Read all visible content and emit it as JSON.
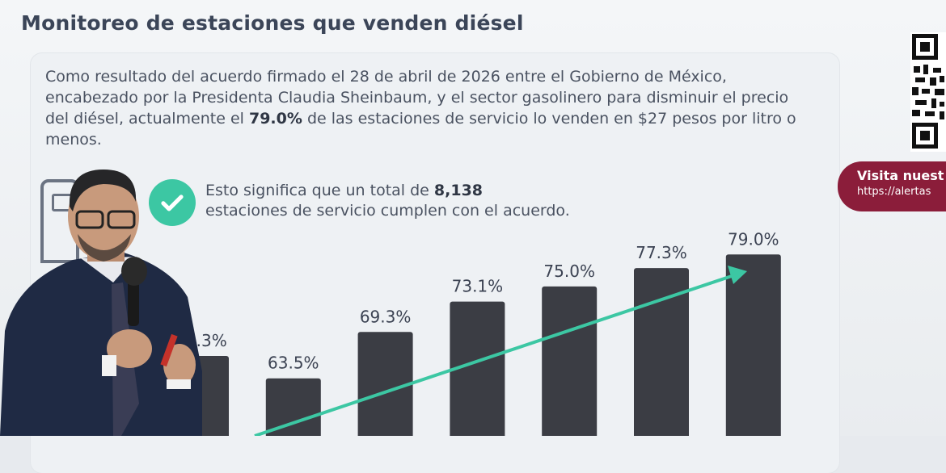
{
  "title": "Monitoreo de estaciones que venden diésel",
  "intro": {
    "text_before": "Como resultado del acuerdo firmado el 28 de abril de 2026 entre el Gobierno de México, encabezado por la Presidenta Claudia Sheinbaum, y el sector gasolinero para disminuir el precio del diésel, actualmente el ",
    "highlight": "79.0%",
    "text_after": " de las estaciones de servicio lo venden en $27 pesos por litro o menos."
  },
  "summary": {
    "line1_before": "Esto significa que un total de ",
    "line1_highlight": "8,138",
    "line2": "estaciones de servicio cumplen con el acuerdo."
  },
  "badge": {
    "line1": "Visita nuest",
    "line2": "https://alertas"
  },
  "icons": {
    "station": "gas-station-icon",
    "check": "check-circle-icon",
    "qr": "qr-code-icon",
    "trend": "trend-arrow-icon"
  },
  "colors": {
    "bar": "#3b3d44",
    "arrow": "#3cc7a3",
    "check": "#3cc7a3",
    "badge": "#8b1d3a"
  },
  "chart_data": {
    "type": "bar",
    "categories": [
      "",
      "",
      "",
      "",
      "",
      "",
      ""
    ],
    "values": [
      66.3,
      63.5,
      69.3,
      73.1,
      75.0,
      77.3,
      79.0
    ],
    "data_labels": [
      "66.3%",
      "63.5%",
      "69.3%",
      "73.1%",
      "75.0%",
      "77.3%",
      "79.0%"
    ],
    "title": "",
    "xlabel": "",
    "ylabel": "",
    "grid": false,
    "legend": "none",
    "trend_arrow": true
  }
}
